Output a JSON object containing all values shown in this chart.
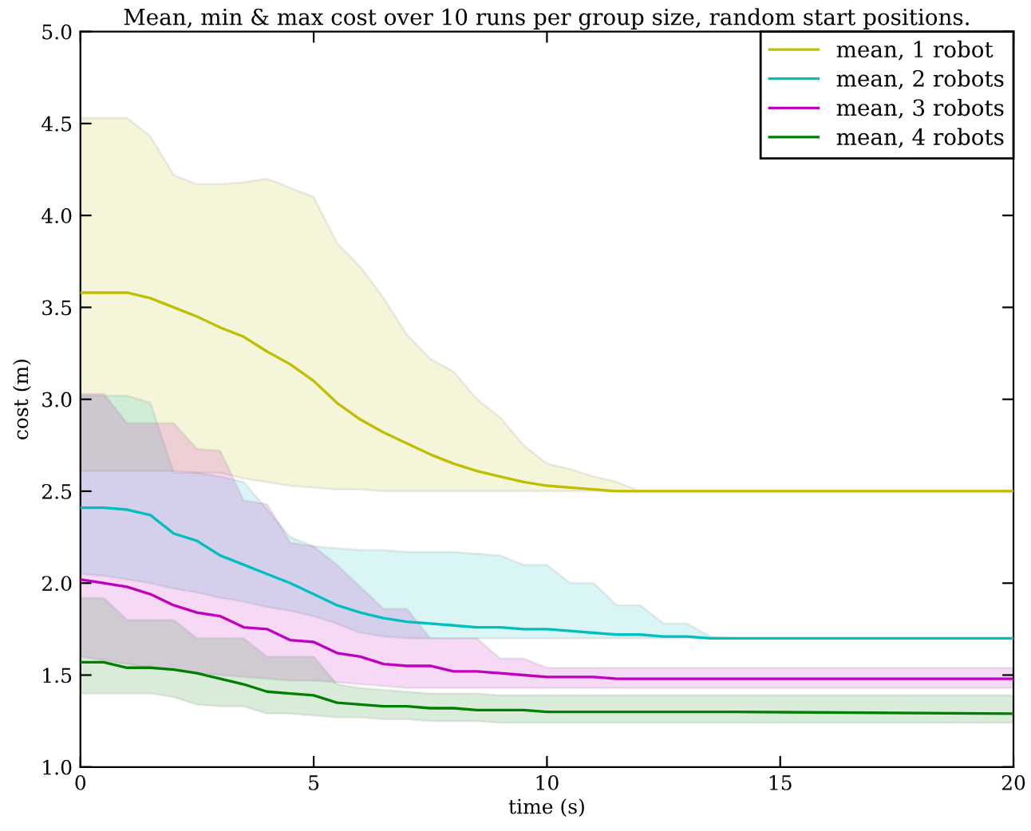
{
  "chart_data": {
    "type": "line",
    "title": "Mean, min & max cost over 10 runs per group size, random start positions.",
    "xlabel": "time (s)",
    "ylabel": "cost (m)",
    "x": [
      0,
      0.5,
      1,
      1.5,
      2,
      2.5,
      3,
      3.5,
      4,
      4.5,
      5,
      5.5,
      6,
      6.5,
      7,
      7.5,
      8,
      8.5,
      9,
      9.5,
      10,
      10.5,
      11,
      11.5,
      12,
      12.5,
      13,
      13.5,
      14,
      20
    ],
    "series": [
      {
        "name": "mean, 1 robot",
        "color": "#bfbf00",
        "values": [
          3.58,
          3.58,
          3.58,
          3.55,
          3.5,
          3.45,
          3.39,
          3.34,
          3.26,
          3.19,
          3.1,
          2.98,
          2.89,
          2.82,
          2.76,
          2.7,
          2.65,
          2.61,
          2.58,
          2.55,
          2.53,
          2.52,
          2.51,
          2.5,
          2.5,
          2.5,
          2.5,
          2.5,
          2.5,
          2.5
        ],
        "upper": [
          4.53,
          4.53,
          4.53,
          4.43,
          4.22,
          4.17,
          4.17,
          4.18,
          4.2,
          4.15,
          4.1,
          3.85,
          3.72,
          3.55,
          3.35,
          3.22,
          3.15,
          3.0,
          2.9,
          2.75,
          2.65,
          2.62,
          2.58,
          2.55,
          2.5,
          2.5,
          2.5,
          2.5,
          2.5,
          2.5
        ],
        "lower": [
          2.61,
          2.61,
          2.61,
          2.61,
          2.61,
          2.6,
          2.6,
          2.57,
          2.55,
          2.53,
          2.52,
          2.51,
          2.51,
          2.5,
          2.5,
          2.5,
          2.5,
          2.5,
          2.5,
          2.5,
          2.5,
          2.5,
          2.5,
          2.5,
          2.5,
          2.5,
          2.5,
          2.5,
          2.5,
          2.5
        ]
      },
      {
        "name": "mean, 2 robots",
        "color": "#00bfbf",
        "values": [
          2.41,
          2.41,
          2.4,
          2.37,
          2.27,
          2.23,
          2.15,
          2.1,
          2.05,
          2.0,
          1.94,
          1.88,
          1.84,
          1.81,
          1.79,
          1.78,
          1.77,
          1.76,
          1.76,
          1.75,
          1.75,
          1.74,
          1.73,
          1.72,
          1.72,
          1.71,
          1.71,
          1.7,
          1.7,
          1.7
        ],
        "upper": [
          3.02,
          3.02,
          3.02,
          2.98,
          2.6,
          2.6,
          2.58,
          2.55,
          2.4,
          2.25,
          2.2,
          2.19,
          2.18,
          2.18,
          2.17,
          2.17,
          2.17,
          2.16,
          2.15,
          2.1,
          2.1,
          2.0,
          2.0,
          1.88,
          1.88,
          1.78,
          1.78,
          1.71,
          1.7,
          1.7
        ],
        "lower": [
          2.05,
          2.04,
          2.02,
          2.0,
          1.97,
          1.95,
          1.92,
          1.9,
          1.87,
          1.85,
          1.82,
          1.78,
          1.73,
          1.71,
          1.7,
          1.7,
          1.7,
          1.7,
          1.7,
          1.7,
          1.7,
          1.7,
          1.7,
          1.7,
          1.7,
          1.7,
          1.7,
          1.7,
          1.7,
          1.7
        ]
      },
      {
        "name": "mean, 3 robots",
        "color": "#bf00bf",
        "values": [
          2.02,
          2.0,
          1.98,
          1.94,
          1.88,
          1.84,
          1.82,
          1.76,
          1.75,
          1.69,
          1.68,
          1.62,
          1.6,
          1.56,
          1.55,
          1.55,
          1.52,
          1.52,
          1.51,
          1.5,
          1.49,
          1.49,
          1.49,
          1.48,
          1.48,
          1.48,
          1.48,
          1.48,
          1.48,
          1.48
        ],
        "upper": [
          3.03,
          3.03,
          2.87,
          2.87,
          2.87,
          2.73,
          2.72,
          2.45,
          2.43,
          2.22,
          2.2,
          2.1,
          1.98,
          1.86,
          1.86,
          1.7,
          1.7,
          1.7,
          1.59,
          1.59,
          1.54,
          1.54,
          1.54,
          1.54,
          1.54,
          1.54,
          1.54,
          1.54,
          1.54,
          1.54
        ],
        "lower": [
          1.6,
          1.58,
          1.56,
          1.54,
          1.53,
          1.51,
          1.5,
          1.49,
          1.48,
          1.47,
          1.47,
          1.46,
          1.45,
          1.44,
          1.43,
          1.43,
          1.43,
          1.43,
          1.43,
          1.43,
          1.43,
          1.43,
          1.43,
          1.43,
          1.43,
          1.43,
          1.43,
          1.43,
          1.43,
          1.43
        ]
      },
      {
        "name": "mean, 4 robots",
        "color": "#008000",
        "values": [
          1.57,
          1.57,
          1.54,
          1.54,
          1.53,
          1.51,
          1.48,
          1.45,
          1.41,
          1.4,
          1.39,
          1.35,
          1.34,
          1.33,
          1.33,
          1.32,
          1.32,
          1.31,
          1.31,
          1.31,
          1.3,
          1.3,
          1.3,
          1.3,
          1.3,
          1.3,
          1.3,
          1.3,
          1.3,
          1.29
        ],
        "upper": [
          1.92,
          1.92,
          1.8,
          1.8,
          1.8,
          1.7,
          1.7,
          1.7,
          1.6,
          1.6,
          1.6,
          1.45,
          1.43,
          1.42,
          1.41,
          1.4,
          1.4,
          1.4,
          1.39,
          1.39,
          1.39,
          1.39,
          1.39,
          1.39,
          1.39,
          1.39,
          1.39,
          1.39,
          1.39,
          1.39
        ],
        "lower": [
          1.4,
          1.4,
          1.4,
          1.4,
          1.38,
          1.34,
          1.33,
          1.33,
          1.29,
          1.29,
          1.28,
          1.27,
          1.27,
          1.26,
          1.26,
          1.25,
          1.25,
          1.25,
          1.24,
          1.24,
          1.24,
          1.24,
          1.24,
          1.24,
          1.24,
          1.24,
          1.24,
          1.24,
          1.24,
          1.24
        ]
      }
    ],
    "xlim": [
      0,
      20
    ],
    "xticks": [
      0,
      5,
      10,
      15,
      20
    ],
    "ylim": [
      1.0,
      5.0
    ],
    "yticks": [
      {
        "value": 1.0,
        "label": "1.0"
      },
      {
        "value": 1.5,
        "label": "1.5"
      },
      {
        "value": 2.0,
        "label": "2.0"
      },
      {
        "value": 2.5,
        "label": "2.5"
      },
      {
        "value": 3.0,
        "label": "3.0"
      },
      {
        "value": 3.5,
        "label": "3.5"
      },
      {
        "value": 4.0,
        "label": "4.0"
      },
      {
        "value": 4.5,
        "label": "4.5"
      },
      {
        "value": 5.0,
        "label": "5.0"
      }
    ],
    "grid": false,
    "legend": "top right",
    "line_style": "solid",
    "marker": "none"
  }
}
